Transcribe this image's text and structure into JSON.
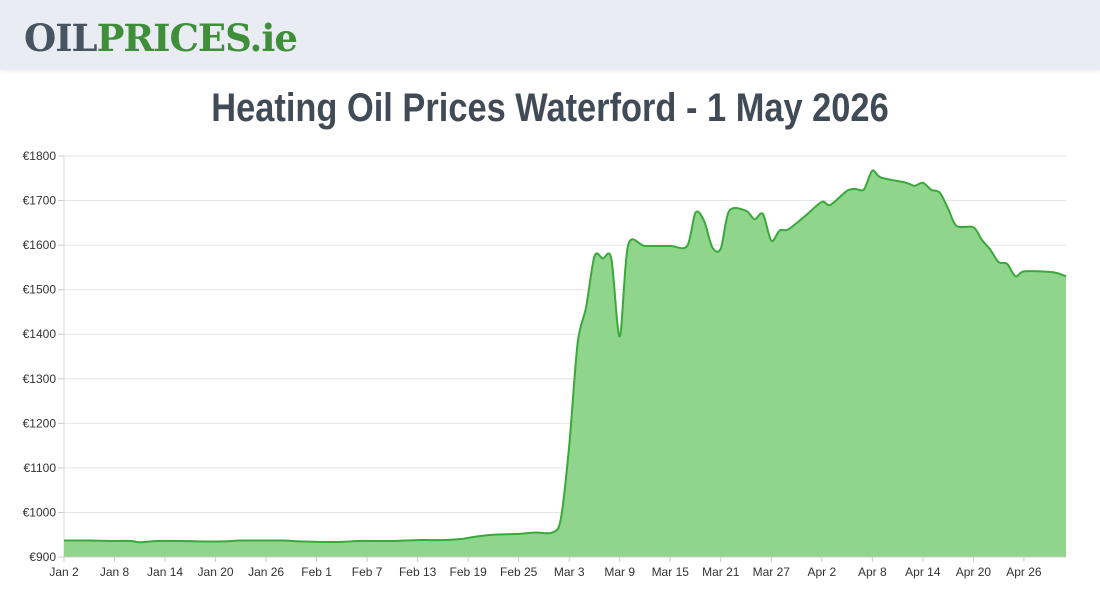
{
  "header": {
    "logo_oil": "OIL",
    "logo_prices": "PRICES",
    "logo_ie": ".ie"
  },
  "page": {
    "title": "Heating Oil Prices Waterford - 1 May 2026"
  },
  "colors": {
    "area_fill": "#8fd68c",
    "line": "#3aa83a",
    "grid": "#e6e6e6"
  },
  "chart_data": {
    "type": "area",
    "title": "Heating Oil Prices Waterford - 1 May 2026",
    "xlabel": "",
    "ylabel": "",
    "ylim": [
      900,
      1800
    ],
    "grid": true,
    "legend": "none",
    "y_ticks": [
      "€900",
      "€1000",
      "€1100",
      "€1200",
      "€1300",
      "€1400",
      "€1500",
      "€1600",
      "€1700",
      "€1800"
    ],
    "y_tick_values": [
      900,
      1000,
      1100,
      1200,
      1300,
      1400,
      1500,
      1600,
      1700,
      1800
    ],
    "x_ticks": [
      "Jan 2",
      "Jan 8",
      "Jan 14",
      "Jan 20",
      "Jan 26",
      "Feb 1",
      "Feb 7",
      "Feb 13",
      "Feb 19",
      "Feb 25",
      "Mar 3",
      "Mar 9",
      "Mar 15",
      "Mar 21",
      "Mar 27",
      "Apr 2",
      "Apr 8",
      "Apr 14",
      "Apr 20",
      "Apr 26"
    ],
    "x_tick_values": [
      "2026-01-02",
      "2026-01-08",
      "2026-01-14",
      "2026-01-20",
      "2026-01-26",
      "2026-02-01",
      "2026-02-07",
      "2026-02-13",
      "2026-02-19",
      "2026-02-25",
      "2026-03-03",
      "2026-03-09",
      "2026-03-15",
      "2026-03-21",
      "2026-03-27",
      "2026-04-02",
      "2026-04-08",
      "2026-04-14",
      "2026-04-20",
      "2026-04-26"
    ],
    "x_range": [
      "2026-01-02",
      "2026-05-01"
    ],
    "series": [
      {
        "points": [
          [
            "2026-01-02",
            937
          ],
          [
            "2026-01-05",
            937
          ],
          [
            "2026-01-08",
            936
          ],
          [
            "2026-01-10",
            936
          ],
          [
            "2026-01-11",
            933
          ],
          [
            "2026-01-13",
            936
          ],
          [
            "2026-01-16",
            936
          ],
          [
            "2026-01-18",
            935
          ],
          [
            "2026-01-21",
            935
          ],
          [
            "2026-01-23",
            937
          ],
          [
            "2026-01-26",
            937
          ],
          [
            "2026-01-28",
            937
          ],
          [
            "2026-01-30",
            935
          ],
          [
            "2026-02-01",
            934
          ],
          [
            "2026-02-04",
            934
          ],
          [
            "2026-02-06",
            936
          ],
          [
            "2026-02-10",
            936
          ],
          [
            "2026-02-13",
            938
          ],
          [
            "2026-02-16",
            938
          ],
          [
            "2026-02-18",
            940
          ],
          [
            "2026-02-20",
            946
          ],
          [
            "2026-02-22",
            950
          ],
          [
            "2026-02-25",
            952
          ],
          [
            "2026-02-27",
            955
          ],
          [
            "2026-03-01",
            955
          ],
          [
            "2026-03-02",
            985
          ],
          [
            "2026-03-03",
            1150
          ],
          [
            "2026-03-04",
            1380
          ],
          [
            "2026-03-05",
            1460
          ],
          [
            "2026-03-06",
            1575
          ],
          [
            "2026-03-07",
            1570
          ],
          [
            "2026-03-08",
            1570
          ],
          [
            "2026-03-09",
            1395
          ],
          [
            "2026-03-10",
            1600
          ],
          [
            "2026-03-12",
            1598
          ],
          [
            "2026-03-15",
            1598
          ],
          [
            "2026-03-17",
            1598
          ],
          [
            "2026-03-18",
            1673
          ],
          [
            "2026-03-19",
            1655
          ],
          [
            "2026-03-20",
            1595
          ],
          [
            "2026-03-21",
            1592
          ],
          [
            "2026-03-22",
            1677
          ],
          [
            "2026-03-24",
            1677
          ],
          [
            "2026-03-25",
            1658
          ],
          [
            "2026-03-26",
            1670
          ],
          [
            "2026-03-27",
            1610
          ],
          [
            "2026-03-28",
            1633
          ],
          [
            "2026-03-29",
            1635
          ],
          [
            "2026-03-31",
            1665
          ],
          [
            "2026-04-02",
            1697
          ],
          [
            "2026-04-03",
            1690
          ],
          [
            "2026-04-05",
            1722
          ],
          [
            "2026-04-06",
            1726
          ],
          [
            "2026-04-07",
            1725
          ],
          [
            "2026-04-08",
            1767
          ],
          [
            "2026-04-09",
            1752
          ],
          [
            "2026-04-12",
            1740
          ],
          [
            "2026-04-13",
            1733
          ],
          [
            "2026-04-14",
            1740
          ],
          [
            "2026-04-15",
            1724
          ],
          [
            "2026-04-16",
            1718
          ],
          [
            "2026-04-17",
            1682
          ],
          [
            "2026-04-18",
            1643
          ],
          [
            "2026-04-20",
            1640
          ],
          [
            "2026-04-21",
            1612
          ],
          [
            "2026-04-22",
            1590
          ],
          [
            "2026-04-23",
            1562
          ],
          [
            "2026-04-24",
            1558
          ],
          [
            "2026-04-25",
            1530
          ],
          [
            "2026-04-26",
            1541
          ],
          [
            "2026-04-29",
            1540
          ],
          [
            "2026-04-30",
            1537
          ],
          [
            "2026-05-01",
            1530
          ]
        ]
      }
    ]
  }
}
